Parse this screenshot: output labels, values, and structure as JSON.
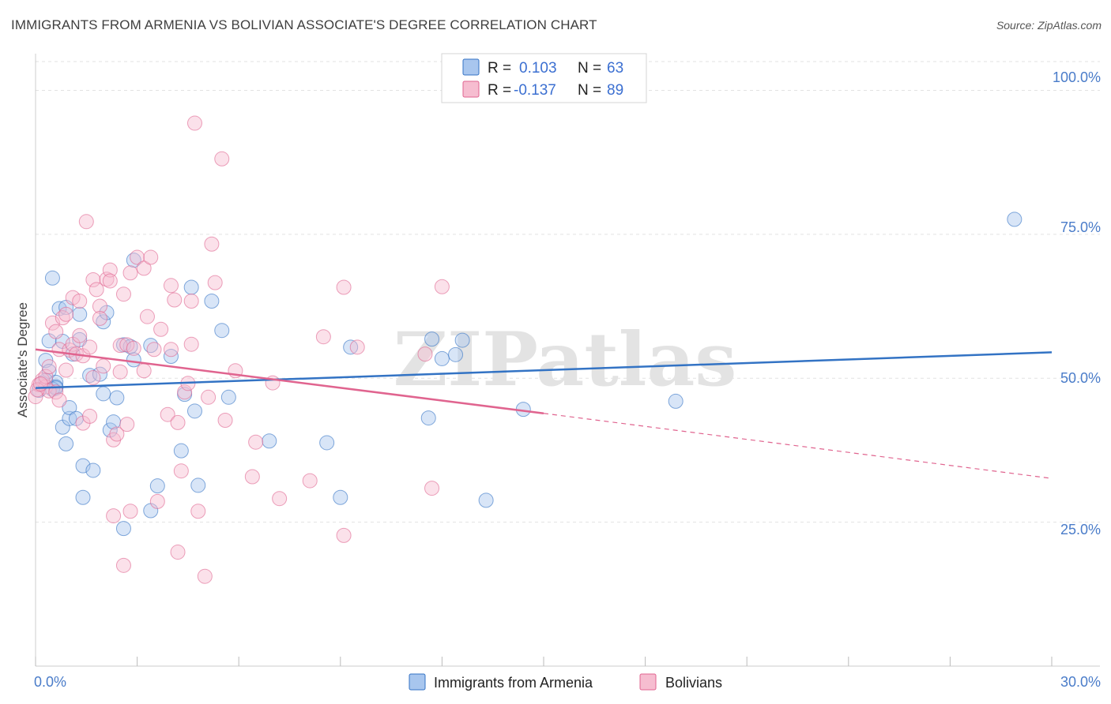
{
  "title": "IMMIGRANTS FROM ARMENIA VS BOLIVIAN ASSOCIATE'S DEGREE CORRELATION CHART",
  "source": "Source: ZipAtlas.com",
  "watermark": "ZIPatlas",
  "colors": {
    "blue_fill": "#a8c6ee",
    "blue_line": "#3373c4",
    "pink_fill": "#f6bdd0",
    "pink_line": "#e0648f",
    "tick": "#4a7cc9"
  },
  "chart_data": {
    "type": "scatter",
    "title": "IMMIGRANTS FROM ARMENIA VS BOLIVIAN ASSOCIATE'S DEGREE CORRELATION CHART",
    "xlabel": "",
    "ylabel": "Associate's Degree",
    "xlim": [
      0,
      30
    ],
    "ylim": [
      0,
      105
    ],
    "x_tick_labels": [
      "0.0%",
      "30.0%"
    ],
    "y_ticks": [
      25,
      50,
      75,
      100
    ],
    "y_tick_labels": [
      "25.0%",
      "50.0%",
      "75.0%",
      "100.0%"
    ],
    "legend": [
      {
        "name": "Immigrants from Armenia",
        "r_label": "R =",
        "r": "0.103",
        "n_label": "N =",
        "n": "63"
      },
      {
        "name": "Bolivians",
        "r_label": "R =",
        "r": "-0.137",
        "n_label": "N =",
        "n": "89"
      }
    ],
    "series": [
      {
        "name": "Immigrants from Armenia",
        "color": "#a8c6ee",
        "trend": {
          "x0": 0,
          "y0": 48.3,
          "x1": 30,
          "y1": 54.5
        },
        "points": [
          [
            0.2,
            49.2
          ],
          [
            0.3,
            53.1
          ],
          [
            0.4,
            51.2
          ],
          [
            0.4,
            56.5
          ],
          [
            0.5,
            67.4
          ],
          [
            0.6,
            49.3
          ],
          [
            0.6,
            48.5
          ],
          [
            0.7,
            62.1
          ],
          [
            0.8,
            41.5
          ],
          [
            0.8,
            56.4
          ],
          [
            0.9,
            38.6
          ],
          [
            0.9,
            62.3
          ],
          [
            1.0,
            43.0
          ],
          [
            1.0,
            44.9
          ],
          [
            1.1,
            54.2
          ],
          [
            1.2,
            43.0
          ],
          [
            1.3,
            56.7
          ],
          [
            1.3,
            61.1
          ],
          [
            1.4,
            34.8
          ],
          [
            1.4,
            29.3
          ],
          [
            1.6,
            50.5
          ],
          [
            1.7,
            34.0
          ],
          [
            1.9,
            50.7
          ],
          [
            2.0,
            47.3
          ],
          [
            2.0,
            59.8
          ],
          [
            2.1,
            61.4
          ],
          [
            2.2,
            41.0
          ],
          [
            2.3,
            42.4
          ],
          [
            2.4,
            46.6
          ],
          [
            2.6,
            23.9
          ],
          [
            2.6,
            55.8
          ],
          [
            2.8,
            55.5
          ],
          [
            2.9,
            53.2
          ],
          [
            2.9,
            70.5
          ],
          [
            3.4,
            27.0
          ],
          [
            3.4,
            55.7
          ],
          [
            3.6,
            31.3
          ],
          [
            4.0,
            53.8
          ],
          [
            4.3,
            37.4
          ],
          [
            4.4,
            47.2
          ],
          [
            4.6,
            65.8
          ],
          [
            4.7,
            44.3
          ],
          [
            4.8,
            31.4
          ],
          [
            5.2,
            63.4
          ],
          [
            5.5,
            58.3
          ],
          [
            5.7,
            46.7
          ],
          [
            6.9,
            39.1
          ],
          [
            8.6,
            38.8
          ],
          [
            9.0,
            29.3
          ],
          [
            9.3,
            55.4
          ],
          [
            11.6,
            43.1
          ],
          [
            11.7,
            56.8
          ],
          [
            12.0,
            53.4
          ],
          [
            12.4,
            54.1
          ],
          [
            12.6,
            56.6
          ],
          [
            13.3,
            28.8
          ],
          [
            14.4,
            44.6
          ],
          [
            18.9,
            46.0
          ],
          [
            28.9,
            77.6
          ],
          [
            0.1,
            47.9
          ],
          [
            0.3,
            49.6
          ],
          [
            0.5,
            48.1
          ],
          [
            0.6,
            48.3
          ]
        ]
      },
      {
        "name": "Bolivians",
        "color": "#f6bdd0",
        "trend": {
          "x0": 0,
          "y0": 55.0,
          "x1": 15,
          "y1": 43.9,
          "dash_x1": 30,
          "dash_y1": 32.6
        },
        "points": [
          [
            0.0,
            46.8
          ],
          [
            0.1,
            48.9
          ],
          [
            0.2,
            49.7
          ],
          [
            0.3,
            48.5
          ],
          [
            0.3,
            50.3
          ],
          [
            0.4,
            47.8
          ],
          [
            0.4,
            52.0
          ],
          [
            0.5,
            59.6
          ],
          [
            0.6,
            47.6
          ],
          [
            0.6,
            58.1
          ],
          [
            0.7,
            55.0
          ],
          [
            0.7,
            46.2
          ],
          [
            0.8,
            60.5
          ],
          [
            0.9,
            61.1
          ],
          [
            0.9,
            51.4
          ],
          [
            1.0,
            54.9
          ],
          [
            1.1,
            64.0
          ],
          [
            1.1,
            55.9
          ],
          [
            1.2,
            54.2
          ],
          [
            1.3,
            57.4
          ],
          [
            1.3,
            63.4
          ],
          [
            1.4,
            42.2
          ],
          [
            1.4,
            53.9
          ],
          [
            1.5,
            77.2
          ],
          [
            1.6,
            55.4
          ],
          [
            1.6,
            43.4
          ],
          [
            1.7,
            67.1
          ],
          [
            1.7,
            50.1
          ],
          [
            1.8,
            65.4
          ],
          [
            1.9,
            62.5
          ],
          [
            1.9,
            60.4
          ],
          [
            2.0,
            52.1
          ],
          [
            2.1,
            67.2
          ],
          [
            2.2,
            68.8
          ],
          [
            2.2,
            66.9
          ],
          [
            2.3,
            39.3
          ],
          [
            2.3,
            26.1
          ],
          [
            2.4,
            40.3
          ],
          [
            2.5,
            55.7
          ],
          [
            2.5,
            51.1
          ],
          [
            2.6,
            64.6
          ],
          [
            2.6,
            17.5
          ],
          [
            2.7,
            55.8
          ],
          [
            2.7,
            42.0
          ],
          [
            2.8,
            26.9
          ],
          [
            2.8,
            68.3
          ],
          [
            2.9,
            55.2
          ],
          [
            3.0,
            71.0
          ],
          [
            3.2,
            51.3
          ],
          [
            3.2,
            69.1
          ],
          [
            3.3,
            60.7
          ],
          [
            3.4,
            71.0
          ],
          [
            3.5,
            55.0
          ],
          [
            3.6,
            28.6
          ],
          [
            3.7,
            58.5
          ],
          [
            3.9,
            43.7
          ],
          [
            4.0,
            66.1
          ],
          [
            4.0,
            55.0
          ],
          [
            4.1,
            63.6
          ],
          [
            4.2,
            42.3
          ],
          [
            4.2,
            19.8
          ],
          [
            4.3,
            33.9
          ],
          [
            4.4,
            47.6
          ],
          [
            4.5,
            49.1
          ],
          [
            4.6,
            55.9
          ],
          [
            4.6,
            63.4
          ],
          [
            4.7,
            94.3
          ],
          [
            4.8,
            26.9
          ],
          [
            5.0,
            15.6
          ],
          [
            5.1,
            46.7
          ],
          [
            5.2,
            73.3
          ],
          [
            5.3,
            66.6
          ],
          [
            5.5,
            88.1
          ],
          [
            5.6,
            42.7
          ],
          [
            5.9,
            51.3
          ],
          [
            6.4,
            32.9
          ],
          [
            6.5,
            38.9
          ],
          [
            7.0,
            49.2
          ],
          [
            7.2,
            29.1
          ],
          [
            8.1,
            32.2
          ],
          [
            8.5,
            57.2
          ],
          [
            9.1,
            65.8
          ],
          [
            9.1,
            22.7
          ],
          [
            9.5,
            55.4
          ],
          [
            11.5,
            54.2
          ],
          [
            11.7,
            30.9
          ],
          [
            12.0,
            65.9
          ],
          [
            0.05,
            48.0
          ],
          [
            0.15,
            49.0
          ]
        ]
      }
    ]
  }
}
